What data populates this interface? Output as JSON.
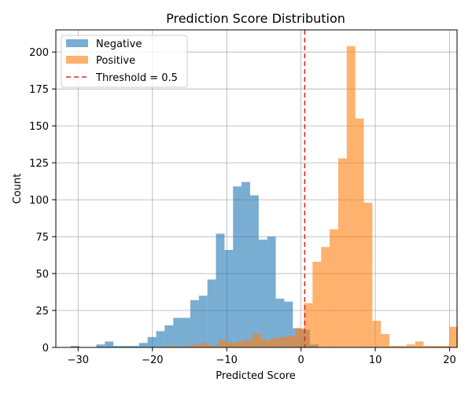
{
  "chart_data": {
    "type": "histogram",
    "title": "Prediction Score Distribution",
    "xlabel": "Predicted Score",
    "ylabel": "Count",
    "xlim": [
      -33,
      21
    ],
    "ylim": [
      0,
      215
    ],
    "xticks": [
      -30,
      -20,
      -10,
      0,
      10,
      20
    ],
    "yticks": [
      0,
      25,
      50,
      75,
      100,
      125,
      150,
      175,
      200
    ],
    "grid": true,
    "legend_position": "top-left",
    "threshold": {
      "value": 0.5,
      "label": "Threshold = 0.5",
      "color": "#d62728"
    },
    "series": [
      {
        "name": "Negative",
        "color": "#1f77b4",
        "bin_width": 1.15,
        "bin_start": -31.0,
        "counts": [
          1,
          0,
          0,
          2,
          4,
          1,
          1,
          1,
          3,
          7,
          11,
          15,
          20,
          20,
          32,
          35,
          46,
          77,
          66,
          109,
          112,
          103,
          73,
          75,
          33,
          31,
          13,
          12,
          2,
          0,
          0,
          0,
          0,
          0,
          0,
          0,
          0,
          0,
          0,
          0,
          0,
          0,
          0,
          0,
          0,
          0
        ]
      },
      {
        "name": "Positive",
        "color": "#ff7f0e",
        "bin_width": 1.15,
        "bin_start": -18.0,
        "counts": [
          1,
          0,
          1,
          2,
          3,
          1,
          5,
          3,
          4,
          5,
          9,
          5,
          6,
          7,
          8,
          13,
          30,
          58,
          68,
          80,
          128,
          204,
          155,
          98,
          18,
          9,
          1,
          1,
          2,
          4,
          1,
          1,
          1,
          14
        ]
      }
    ]
  }
}
